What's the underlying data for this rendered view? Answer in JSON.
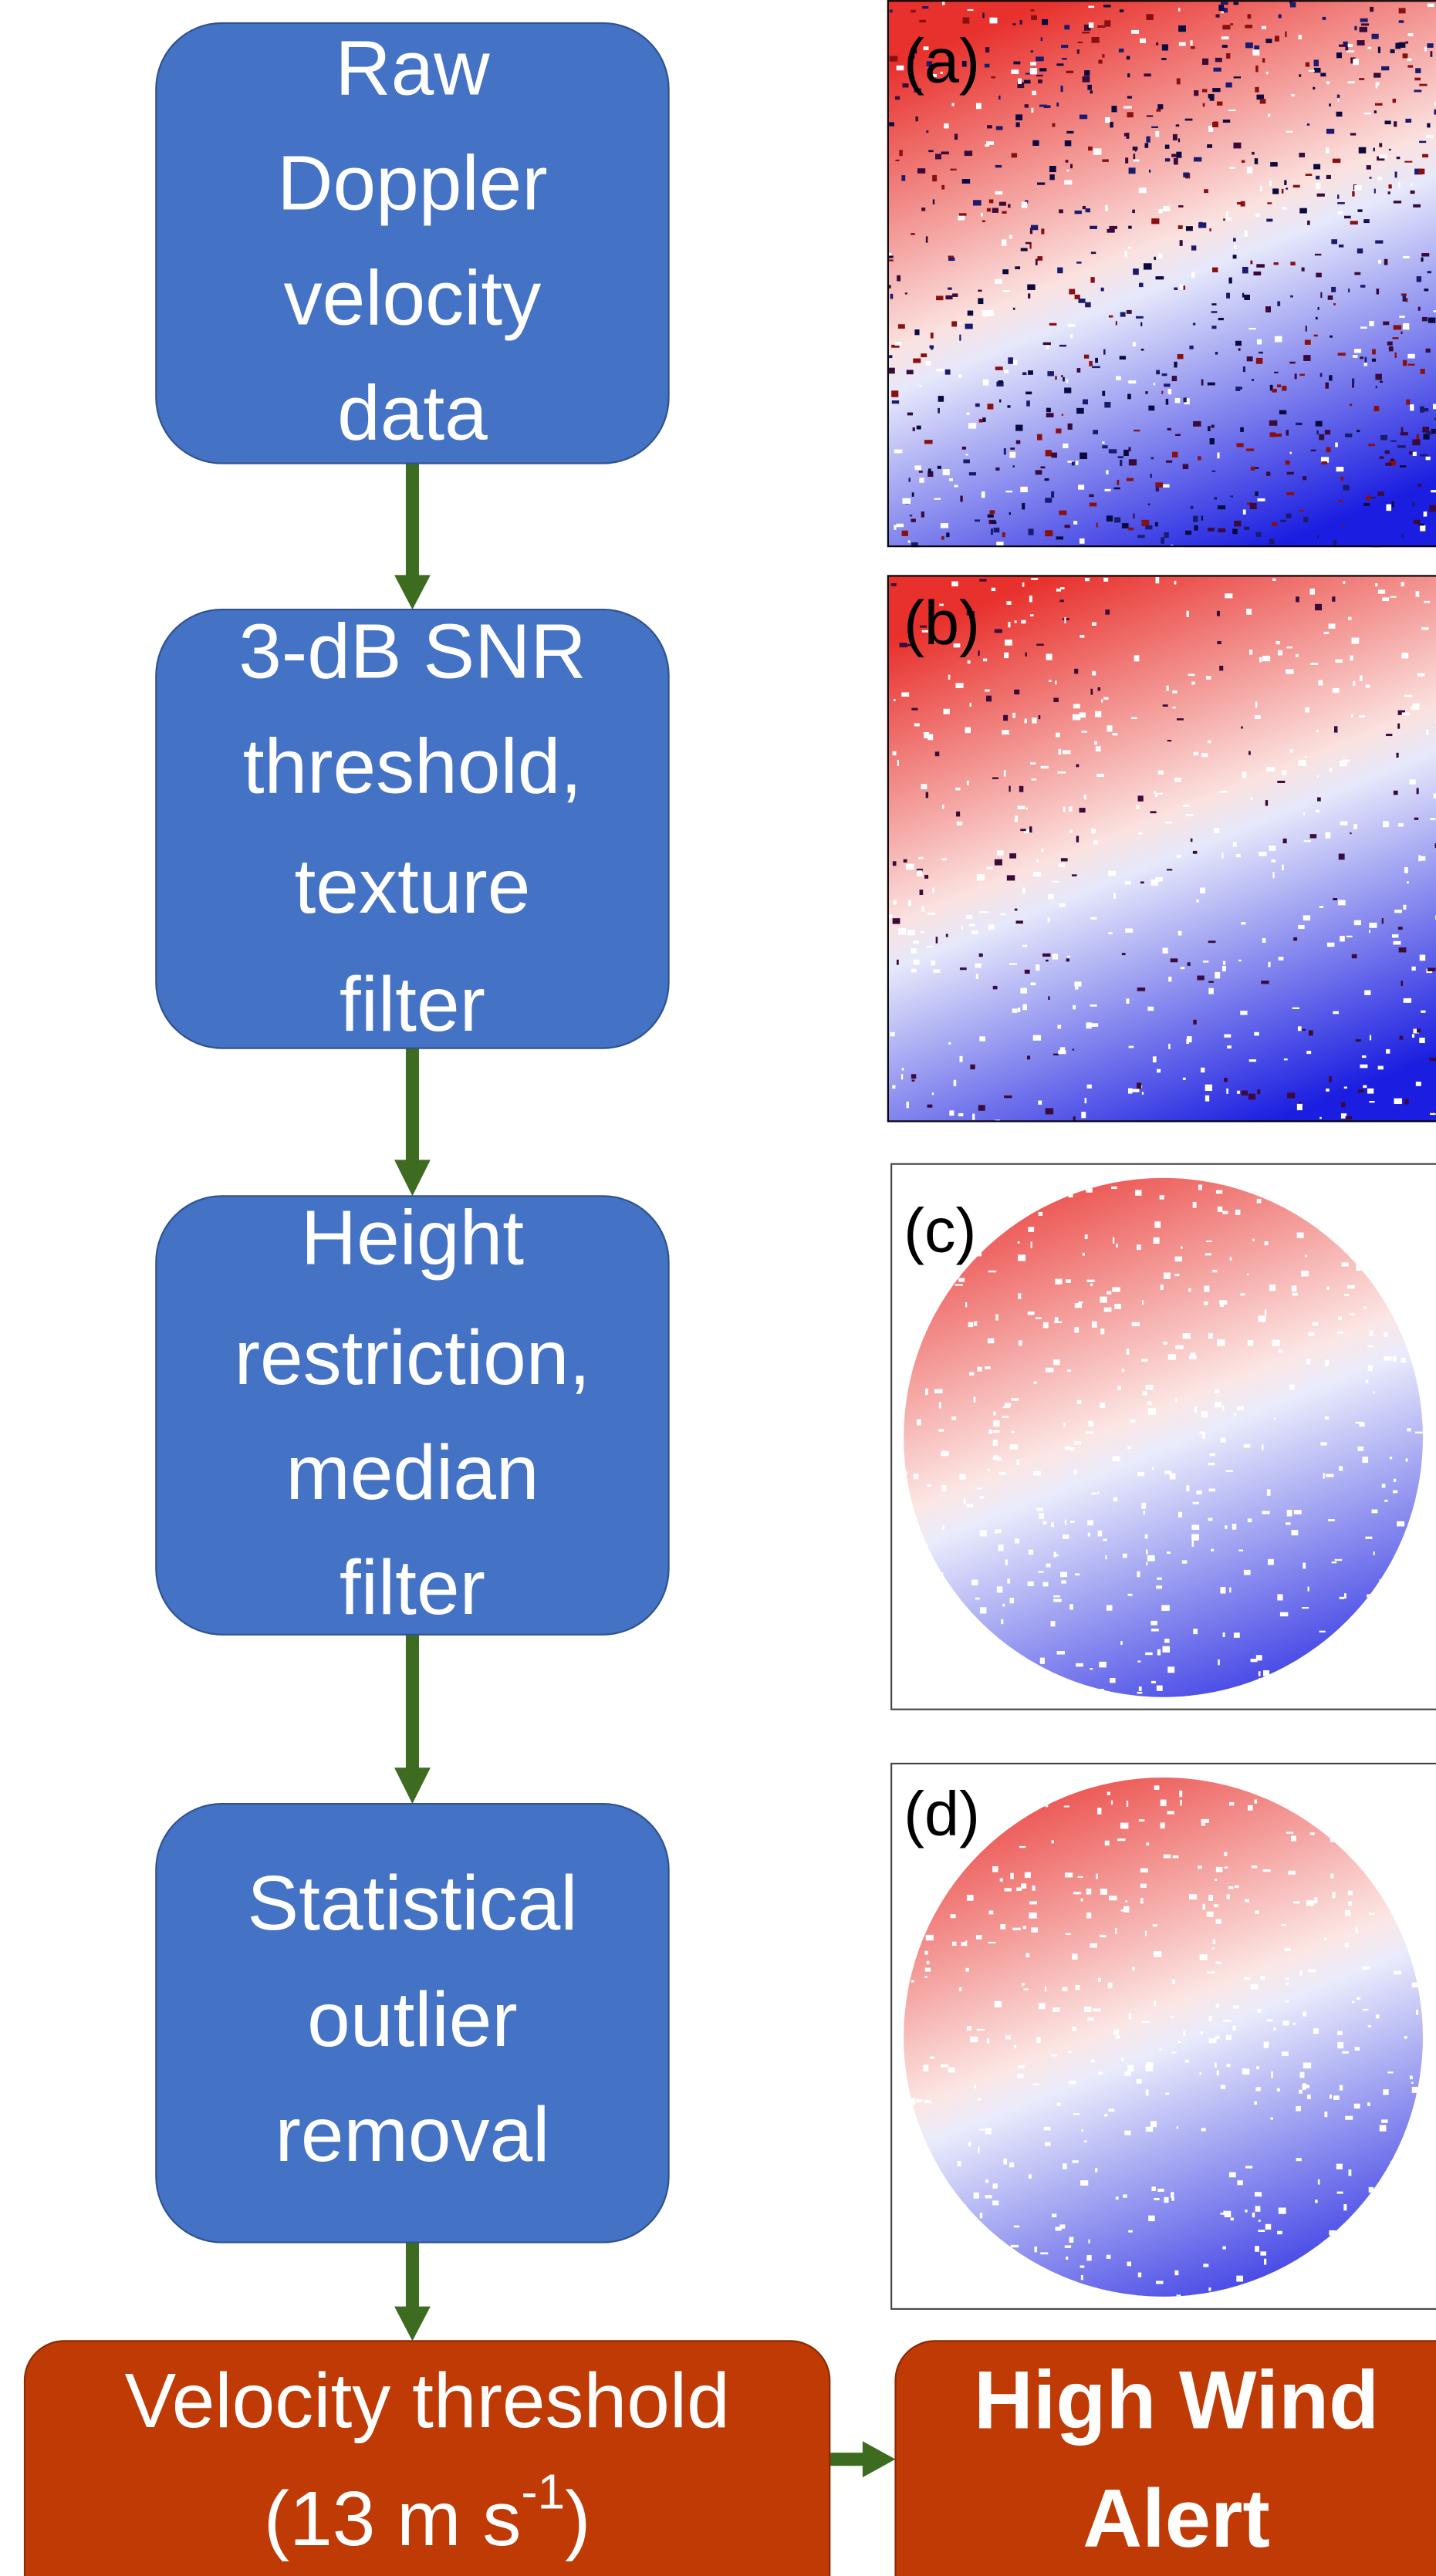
{
  "nodes": [
    {
      "lines": [
        "Raw",
        "Doppler",
        "velocity",
        "data"
      ]
    },
    {
      "lines": [
        "3-dB SNR",
        "threshold,",
        "texture",
        "filter"
      ]
    },
    {
      "lines": [
        "Height",
        "restriction,",
        "median",
        "filter"
      ]
    },
    {
      "lines": [
        "Statistical",
        "outlier",
        "removal"
      ]
    }
  ],
  "threshold": {
    "line1": "Velocity threshold",
    "line2_before": "(13 m s",
    "line2_sup": "-1",
    "line2_after": ")"
  },
  "alert": {
    "lines": [
      "High Wind",
      "Alert"
    ]
  },
  "panels": [
    {
      "label": "(a)"
    },
    {
      "label": "(b)"
    },
    {
      "label": "(c)"
    },
    {
      "label": "(d)"
    }
  ]
}
